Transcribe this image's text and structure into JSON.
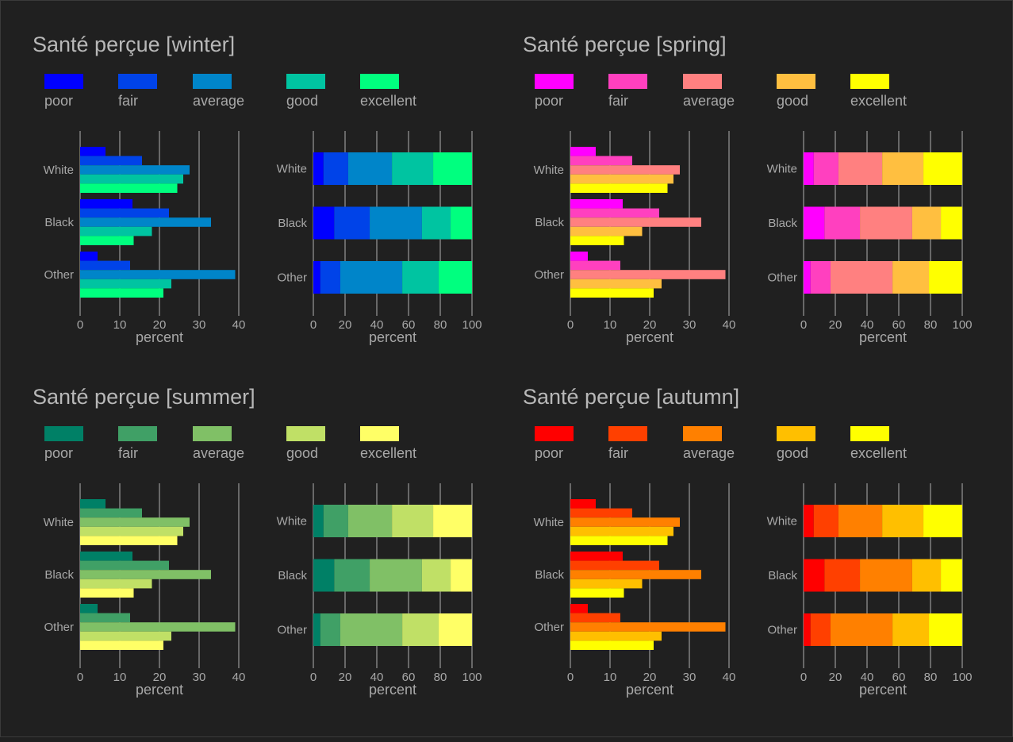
{
  "chart_data": [
    {
      "type": "bar",
      "title": "Santé perçue [winter]",
      "categories": [
        "White",
        "Black",
        "Other"
      ],
      "legend": [
        "poor",
        "fair",
        "average",
        "good",
        "excellent"
      ],
      "colors": [
        "#0000ff",
        "#0043e8",
        "#0085c9",
        "#00c4a1",
        "#00ff7f"
      ],
      "series_values": [
        [
          6.4,
          15.6,
          27.6,
          26.0,
          24.5
        ],
        [
          13.2,
          22.4,
          33.0,
          18.1,
          13.5
        ],
        [
          4.4,
          12.6,
          39.1,
          23.0,
          21.0
        ]
      ],
      "xlabel": "percent",
      "dodge_xlim": [
        0,
        40
      ],
      "dodge_ticks": [
        "0",
        "10",
        "20",
        "30",
        "40"
      ],
      "stack_xlim": [
        0,
        100
      ],
      "stack_ticks": [
        "0",
        "20",
        "40",
        "60",
        "80",
        "100"
      ]
    },
    {
      "type": "bar",
      "title": "Santé perçue [spring]",
      "categories": [
        "White",
        "Black",
        "Other"
      ],
      "legend": [
        "poor",
        "fair",
        "average",
        "good",
        "excellent"
      ],
      "colors": [
        "#ff00ff",
        "#ff40bf",
        "#ff8080",
        "#ffbf40",
        "#ffff00"
      ],
      "series_values": [
        [
          6.4,
          15.6,
          27.6,
          26.0,
          24.5
        ],
        [
          13.2,
          22.4,
          33.0,
          18.1,
          13.5
        ],
        [
          4.4,
          12.6,
          39.1,
          23.0,
          21.0
        ]
      ],
      "xlabel": "percent",
      "dodge_xlim": [
        0,
        40
      ],
      "dodge_ticks": [
        "0",
        "10",
        "20",
        "30",
        "40"
      ],
      "stack_xlim": [
        0,
        100
      ],
      "stack_ticks": [
        "0",
        "20",
        "40",
        "60",
        "80",
        "100"
      ]
    },
    {
      "type": "bar",
      "title": "Santé perçue [summer]",
      "categories": [
        "White",
        "Black",
        "Other"
      ],
      "legend": [
        "poor",
        "fair",
        "average",
        "good",
        "excellent"
      ],
      "colors": [
        "#008066",
        "#40a066",
        "#80c066",
        "#c0e066",
        "#ffff66"
      ],
      "series_values": [
        [
          6.4,
          15.6,
          27.6,
          26.0,
          24.5
        ],
        [
          13.2,
          22.4,
          33.0,
          18.1,
          13.5
        ],
        [
          4.4,
          12.6,
          39.1,
          23.0,
          21.0
        ]
      ],
      "xlabel": "percent",
      "dodge_xlim": [
        0,
        40
      ],
      "dodge_ticks": [
        "0",
        "10",
        "20",
        "30",
        "40"
      ],
      "stack_xlim": [
        0,
        100
      ],
      "stack_ticks": [
        "0",
        "20",
        "40",
        "60",
        "80",
        "100"
      ]
    },
    {
      "type": "bar",
      "title": "Santé perçue [autumn]",
      "categories": [
        "White",
        "Black",
        "Other"
      ],
      "legend": [
        "poor",
        "fair",
        "average",
        "good",
        "excellent"
      ],
      "colors": [
        "#ff0000",
        "#ff4000",
        "#ff8000",
        "#ffbf00",
        "#ffff00"
      ],
      "series_values": [
        [
          6.4,
          15.6,
          27.6,
          26.0,
          24.5
        ],
        [
          13.2,
          22.4,
          33.0,
          18.1,
          13.5
        ],
        [
          4.4,
          12.6,
          39.1,
          23.0,
          21.0
        ]
      ],
      "xlabel": "percent",
      "dodge_xlim": [
        0,
        40
      ],
      "dodge_ticks": [
        "0",
        "10",
        "20",
        "30",
        "40"
      ],
      "stack_xlim": [
        0,
        100
      ],
      "stack_ticks": [
        "0",
        "20",
        "40",
        "60",
        "80",
        "100"
      ]
    }
  ],
  "style": {
    "background": "#202020",
    "title_color": "#b8b8b8",
    "text_color": "#a8a8a8",
    "grid_color": "#b0b0b0"
  }
}
